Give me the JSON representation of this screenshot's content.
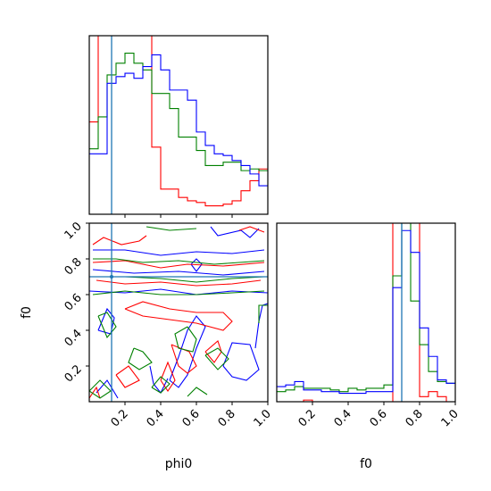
{
  "chart_data": [
    {
      "type": "histogram",
      "panel": "phi0 marginal",
      "x_range": [
        0.0,
        1.0
      ],
      "bins": [
        0.0,
        0.05,
        0.1,
        0.15,
        0.2,
        0.25,
        0.3,
        0.35,
        0.4,
        0.45,
        0.5,
        0.55,
        0.6,
        0.65,
        0.7,
        0.75,
        0.8,
        0.85,
        0.9,
        0.95,
        1.0
      ],
      "series": [
        {
          "color": "#ff0000",
          "values": [
            0.55,
            1.6,
            1.6,
            1.6,
            1.6,
            1.6,
            1.6,
            0.4,
            0.15,
            0.15,
            0.1,
            0.08,
            0.07,
            0.05,
            0.05,
            0.06,
            0.08,
            0.14,
            0.2,
            0.27
          ]
        },
        {
          "color": "#008000",
          "values": [
            0.39,
            0.58,
            0.83,
            0.9,
            0.96,
            0.9,
            0.86,
            0.72,
            0.72,
            0.63,
            0.46,
            0.46,
            0.38,
            0.29,
            0.29,
            0.31,
            0.31,
            0.26,
            0.27,
            0.26
          ]
        },
        {
          "color": "#0000ff",
          "values": [
            0.36,
            0.36,
            0.78,
            0.82,
            0.84,
            0.81,
            0.88,
            0.95,
            0.86,
            0.74,
            0.74,
            0.68,
            0.49,
            0.41,
            0.36,
            0.35,
            0.32,
            0.29,
            0.24,
            0.17
          ]
        }
      ],
      "truth_line": {
        "x": 0.125,
        "color": "#1f77b4"
      },
      "x_ticks": [
        0.2,
        0.4,
        0.6,
        0.8
      ],
      "x_tick_labels": [],
      "y_ticks": []
    },
    {
      "type": "contour",
      "panel": "phi0 vs f0",
      "x_range": [
        0.0,
        1.0
      ],
      "y_range": [
        0.0,
        1.0
      ],
      "xlabel": "phi0",
      "ylabel": "f0",
      "x_ticks": [
        0.2,
        0.4,
        0.6,
        0.8,
        1.0
      ],
      "x_tick_labels": [
        "0.2",
        "0.4",
        "0.6",
        "0.8",
        "1.0"
      ],
      "y_ticks": [
        0.2,
        0.4,
        0.6,
        0.8,
        1.0
      ],
      "y_tick_labels": [
        "0.2",
        "0.4",
        "0.6",
        "0.8",
        "1.0"
      ],
      "truth_lines": {
        "x": 0.125,
        "y": 0.7,
        "color": "#1f77b4"
      },
      "series": [
        {
          "color": "#0000ff",
          "contours": [
            [
              [
                0.02,
                0.85
              ],
              [
                0.2,
                0.85
              ],
              [
                0.4,
                0.82
              ],
              [
                0.6,
                0.84
              ],
              [
                0.8,
                0.83
              ],
              [
                0.98,
                0.85
              ]
            ],
            [
              [
                0.02,
                0.74
              ],
              [
                0.25,
                0.72
              ],
              [
                0.5,
                0.73
              ],
              [
                0.75,
                0.71
              ],
              [
                0.98,
                0.73
              ]
            ],
            [
              [
                0.0,
                0.62
              ],
              [
                0.2,
                0.61
              ],
              [
                0.4,
                0.63
              ],
              [
                0.6,
                0.6
              ],
              [
                0.8,
                0.62
              ],
              [
                1.0,
                0.61
              ]
            ],
            [
              [
                0.05,
                0.4
              ],
              [
                0.1,
                0.52
              ],
              [
                0.14,
                0.47
              ],
              [
                0.12,
                0.38
              ],
              [
                0.05,
                0.4
              ]
            ],
            [
              [
                0.45,
                0.12
              ],
              [
                0.5,
                0.25
              ],
              [
                0.55,
                0.4
              ],
              [
                0.6,
                0.48
              ],
              [
                0.65,
                0.42
              ],
              [
                0.6,
                0.3
              ],
              [
                0.55,
                0.15
              ],
              [
                0.5,
                0.08
              ],
              [
                0.45,
                0.12
              ]
            ],
            [
              [
                0.75,
                0.2
              ],
              [
                0.8,
                0.33
              ],
              [
                0.9,
                0.32
              ],
              [
                0.95,
                0.18
              ],
              [
                0.88,
                0.12
              ],
              [
                0.8,
                0.14
              ],
              [
                0.75,
                0.2
              ]
            ],
            [
              [
                0.93,
                0.3
              ],
              [
                0.95,
                0.45
              ],
              [
                0.97,
                0.54
              ],
              [
                1.0,
                0.55
              ]
            ],
            [
              [
                0.04,
                0.05
              ],
              [
                0.1,
                0.12
              ],
              [
                0.16,
                0.02
              ]
            ],
            [
              [
                0.68,
                0.98
              ],
              [
                0.72,
                0.93
              ],
              [
                0.85,
                0.96
              ],
              [
                0.9,
                0.92
              ],
              [
                0.95,
                0.97
              ]
            ],
            [
              [
                0.34,
                0.2
              ],
              [
                0.36,
                0.1
              ],
              [
                0.4,
                0.05
              ],
              [
                0.44,
                0.13
              ]
            ],
            [
              [
                0.57,
                0.77
              ],
              [
                0.6,
                0.73
              ],
              [
                0.63,
                0.77
              ],
              [
                0.6,
                0.8
              ],
              [
                0.57,
                0.77
              ]
            ]
          ]
        },
        {
          "color": "#ff0000",
          "contours": [
            [
              [
                0.02,
                0.88
              ],
              [
                0.08,
                0.92
              ],
              [
                0.18,
                0.88
              ],
              [
                0.28,
                0.9
              ],
              [
                0.32,
                0.93
              ]
            ],
            [
              [
                0.02,
                0.78
              ],
              [
                0.2,
                0.79
              ],
              [
                0.4,
                0.75
              ],
              [
                0.55,
                0.77
              ],
              [
                0.75,
                0.76
              ],
              [
                0.98,
                0.78
              ]
            ],
            [
              [
                0.2,
                0.52
              ],
              [
                0.3,
                0.56
              ],
              [
                0.45,
                0.52
              ],
              [
                0.6,
                0.5
              ],
              [
                0.75,
                0.5
              ],
              [
                0.8,
                0.45
              ],
              [
                0.75,
                0.4
              ],
              [
                0.6,
                0.44
              ],
              [
                0.45,
                0.46
              ],
              [
                0.3,
                0.48
              ],
              [
                0.2,
                0.52
              ]
            ],
            [
              [
                0.04,
                0.68
              ],
              [
                0.2,
                0.66
              ],
              [
                0.4,
                0.67
              ],
              [
                0.6,
                0.65
              ],
              [
                0.8,
                0.66
              ],
              [
                0.96,
                0.68
              ]
            ],
            [
              [
                0.46,
                0.32
              ],
              [
                0.5,
                0.2
              ],
              [
                0.55,
                0.16
              ],
              [
                0.6,
                0.2
              ],
              [
                0.56,
                0.28
              ],
              [
                0.46,
                0.32
              ]
            ],
            [
              [
                0.65,
                0.28
              ],
              [
                0.7,
                0.22
              ],
              [
                0.74,
                0.28
              ],
              [
                0.72,
                0.34
              ],
              [
                0.65,
                0.28
              ]
            ],
            [
              [
                0.4,
                0.12
              ],
              [
                0.44,
                0.22
              ],
              [
                0.48,
                0.12
              ],
              [
                0.44,
                0.06
              ],
              [
                0.4,
                0.12
              ]
            ],
            [
              [
                0.15,
                0.15
              ],
              [
                0.22,
                0.2
              ],
              [
                0.28,
                0.12
              ],
              [
                0.2,
                0.08
              ],
              [
                0.15,
                0.15
              ]
            ],
            [
              [
                0.84,
                0.96
              ],
              [
                0.9,
                0.98
              ],
              [
                0.98,
                0.95
              ]
            ],
            [
              [
                0.0,
                0.02
              ],
              [
                0.04,
                0.08
              ],
              [
                0.06,
                0.02
              ]
            ]
          ]
        },
        {
          "color": "#008000",
          "contours": [
            [
              [
                0.32,
                0.98
              ],
              [
                0.45,
                0.96
              ],
              [
                0.6,
                0.97
              ]
            ],
            [
              [
                0.02,
                0.8
              ],
              [
                0.15,
                0.8
              ],
              [
                0.3,
                0.78
              ],
              [
                0.5,
                0.79
              ],
              [
                0.7,
                0.77
              ],
              [
                0.98,
                0.79
              ]
            ],
            [
              [
                0.02,
                0.7
              ],
              [
                0.2,
                0.7
              ],
              [
                0.4,
                0.69
              ],
              [
                0.6,
                0.67
              ],
              [
                0.8,
                0.69
              ],
              [
                0.98,
                0.7
              ]
            ],
            [
              [
                0.02,
                0.6
              ],
              [
                0.2,
                0.62
              ],
              [
                0.4,
                0.6
              ],
              [
                0.6,
                0.6
              ],
              [
                0.8,
                0.61
              ],
              [
                0.98,
                0.62
              ]
            ],
            [
              [
                0.05,
                0.48
              ],
              [
                0.1,
                0.5
              ],
              [
                0.15,
                0.42
              ],
              [
                0.1,
                0.36
              ],
              [
                0.05,
                0.48
              ]
            ],
            [
              [
                0.55,
                0.42
              ],
              [
                0.6,
                0.35
              ],
              [
                0.58,
                0.28
              ],
              [
                0.5,
                0.3
              ],
              [
                0.48,
                0.38
              ],
              [
                0.55,
                0.42
              ]
            ],
            [
              [
                0.25,
                0.3
              ],
              [
                0.3,
                0.28
              ],
              [
                0.35,
                0.22
              ],
              [
                0.28,
                0.18
              ],
              [
                0.22,
                0.22
              ],
              [
                0.25,
                0.3
              ]
            ],
            [
              [
                0.65,
                0.26
              ],
              [
                0.72,
                0.3
              ],
              [
                0.78,
                0.24
              ],
              [
                0.72,
                0.18
              ],
              [
                0.65,
                0.26
              ]
            ],
            [
              [
                0.95,
                0.44
              ],
              [
                0.95,
                0.54
              ],
              [
                1.0,
                0.54
              ]
            ],
            [
              [
                0.0,
                0.06
              ],
              [
                0.06,
                0.12
              ],
              [
                0.12,
                0.06
              ],
              [
                0.06,
                0.02
              ],
              [
                0.0,
                0.06
              ]
            ],
            [
              [
                0.35,
                0.08
              ],
              [
                0.4,
                0.05
              ],
              [
                0.45,
                0.1
              ],
              [
                0.4,
                0.14
              ],
              [
                0.35,
                0.08
              ]
            ],
            [
              [
                0.55,
                0.03
              ],
              [
                0.6,
                0.08
              ],
              [
                0.66,
                0.04
              ]
            ]
          ]
        }
      ]
    },
    {
      "type": "histogram",
      "panel": "f0 marginal",
      "x_range": [
        0.0,
        1.0
      ],
      "xlabel": "f0",
      "bins": [
        0.0,
        0.05,
        0.1,
        0.15,
        0.2,
        0.25,
        0.3,
        0.35,
        0.4,
        0.45,
        0.5,
        0.55,
        0.6,
        0.65,
        0.7,
        0.75,
        0.8,
        0.85,
        0.9,
        0.95,
        1.0
      ],
      "series": [
        {
          "color": "#ff0000",
          "values": [
            0.0,
            0.0,
            0.0,
            0.01,
            0.0,
            0.0,
            0.0,
            0.0,
            0.0,
            0.0,
            0.0,
            0.0,
            0.0,
            1.6,
            1.6,
            1.6,
            0.03,
            0.06,
            0.03,
            0.0
          ]
        },
        {
          "color": "#008000",
          "values": [
            0.06,
            0.07,
            0.09,
            0.08,
            0.08,
            0.08,
            0.07,
            0.06,
            0.08,
            0.07,
            0.08,
            0.08,
            0.1,
            0.75,
            1.2,
            0.6,
            0.34,
            0.18,
            0.12,
            0.11
          ]
        },
        {
          "color": "#0000ff",
          "values": [
            0.09,
            0.1,
            0.12,
            0.07,
            0.07,
            0.06,
            0.06,
            0.05,
            0.05,
            0.05,
            0.06,
            0.06,
            0.06,
            0.68,
            1.02,
            0.89,
            0.44,
            0.27,
            0.13,
            0.11
          ]
        }
      ],
      "truth_line": {
        "x": 0.7,
        "color": "#1f77b4"
      },
      "x_ticks": [
        0.2,
        0.4,
        0.6,
        0.8,
        1.0
      ],
      "x_tick_labels": [
        "0.2",
        "0.4",
        "0.6",
        "0.8",
        "1.0"
      ],
      "y_ticks": []
    }
  ]
}
